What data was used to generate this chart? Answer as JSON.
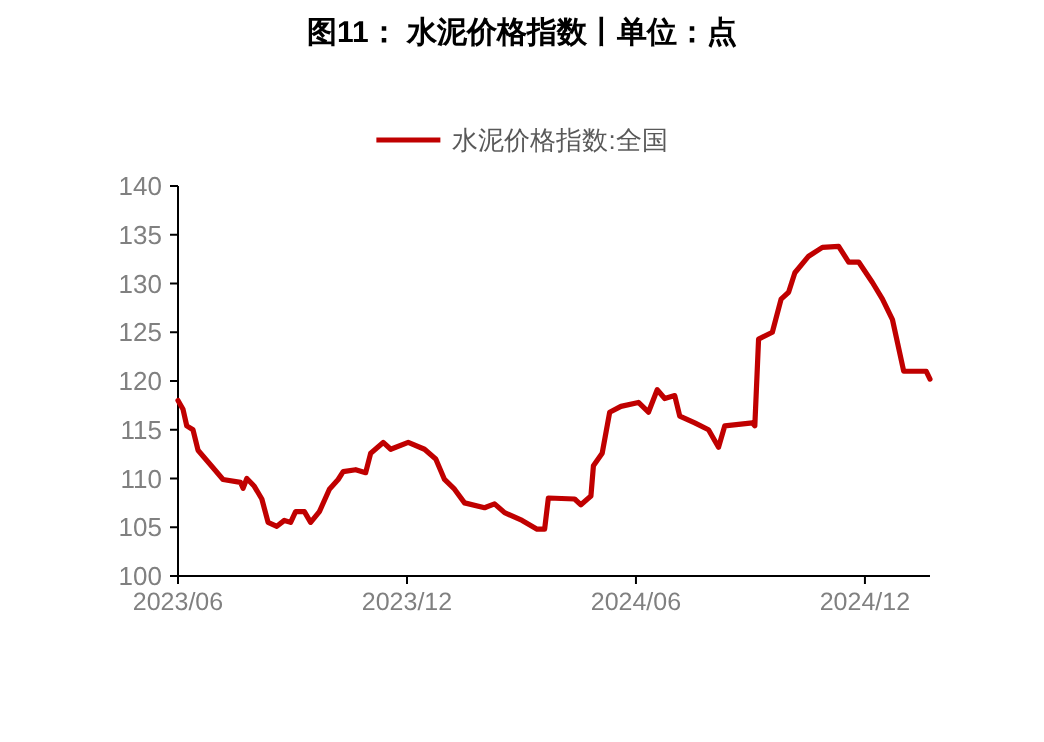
{
  "chart_data": {
    "type": "line",
    "title": "图11：  水泥价格指数丨单位：点",
    "legend": "top",
    "grid": false,
    "marker": "none",
    "line_style": "solid",
    "xlim": [
      "2023-06-01",
      "2025-01-22"
    ],
    "xticks": [
      {
        "value": "2023-06-01",
        "label": "2023/06"
      },
      {
        "value": "2023-12-01",
        "label": "2023/12"
      },
      {
        "value": "2024-06-01",
        "label": "2024/06"
      },
      {
        "value": "2024-12-01",
        "label": "2024/12"
      }
    ],
    "ylim": [
      100,
      140
    ],
    "yticks": [
      100,
      105,
      110,
      115,
      120,
      125,
      130,
      135,
      140
    ],
    "series": [
      {
        "name": "水泥价格指数:全国",
        "color": "#c00000",
        "x": [
          "2023-06-01",
          "2023-06-05",
          "2023-06-08",
          "2023-06-13",
          "2023-06-17",
          "2023-06-23",
          "2023-06-29",
          "2023-07-07",
          "2023-07-21",
          "2023-07-23",
          "2023-07-26",
          "2023-08-01",
          "2023-08-07",
          "2023-08-12",
          "2023-08-19",
          "2023-08-25",
          "2023-08-30",
          "2023-09-03",
          "2023-09-10",
          "2023-09-15",
          "2023-09-22",
          "2023-09-30",
          "2023-10-07",
          "2023-10-11",
          "2023-10-21",
          "2023-10-29",
          "2023-11-02",
          "2023-11-12",
          "2023-11-18",
          "2023-12-02",
          "2023-12-15",
          "2023-12-24",
          "2023-12-31",
          "2024-01-08",
          "2024-01-16",
          "2024-02-01",
          "2024-02-09",
          "2024-02-17",
          "2024-03-02",
          "2024-03-14",
          "2024-03-20",
          "2024-03-23",
          "2024-04-13",
          "2024-04-18",
          "2024-04-26",
          "2024-04-28",
          "2024-05-05",
          "2024-05-11",
          "2024-05-20",
          "2024-06-03",
          "2024-06-11",
          "2024-06-18",
          "2024-06-24",
          "2024-07-02",
          "2024-07-06",
          "2024-07-18",
          "2024-07-29",
          "2024-08-06",
          "2024-08-11",
          "2024-09-02",
          "2024-09-04",
          "2024-09-07",
          "2024-09-18",
          "2024-09-25",
          "2024-10-01",
          "2024-10-06",
          "2024-10-17",
          "2024-10-28",
          "2024-11-10",
          "2024-11-18",
          "2024-11-26",
          "2024-12-07",
          "2024-12-15",
          "2024-12-23",
          "2025-01-01",
          "2025-01-19",
          "2025-01-22"
        ],
        "values": [
          118.0,
          117.1,
          115.4,
          115.0,
          112.9,
          112.0,
          111.1,
          109.9,
          109.6,
          109.0,
          110.0,
          109.2,
          107.9,
          105.5,
          105.1,
          105.7,
          105.5,
          106.6,
          106.6,
          105.5,
          106.6,
          108.9,
          109.9,
          110.7,
          110.9,
          110.6,
          112.6,
          113.7,
          113.0,
          113.7,
          113.0,
          112.0,
          109.9,
          108.9,
          107.5,
          107.0,
          107.4,
          106.5,
          105.7,
          104.8,
          104.8,
          108.0,
          107.9,
          107.3,
          108.2,
          111.3,
          112.6,
          116.8,
          117.4,
          117.8,
          116.8,
          119.1,
          118.2,
          118.5,
          116.4,
          115.7,
          115.0,
          113.2,
          115.4,
          115.7,
          115.4,
          124.3,
          125.0,
          128.4,
          129.1,
          131.1,
          132.8,
          133.7,
          133.8,
          132.2,
          132.2,
          130.1,
          128.4,
          126.3,
          121.0,
          121.0,
          120.2
        ]
      }
    ]
  }
}
